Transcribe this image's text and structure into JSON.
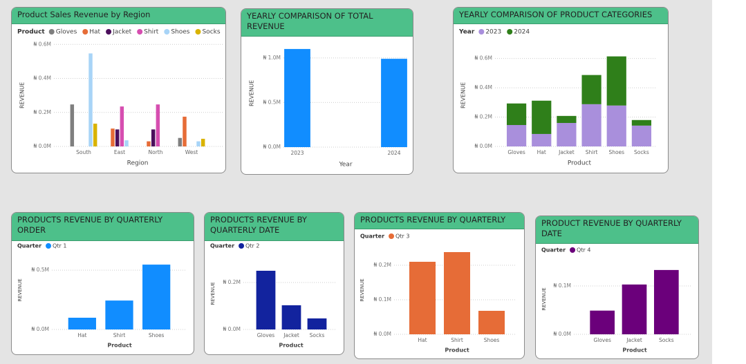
{
  "chart_data": [
    {
      "type": "bar",
      "title": "Product Sales Revenue by Region",
      "x_label": "Region",
      "y_label": "REVENUE",
      "legend_title": "Product",
      "categories": [
        "South",
        "East",
        "North",
        "West"
      ],
      "series": [
        {
          "name": "Gloves",
          "color": "#7f7f7f",
          "values": [
            247000,
            null,
            null,
            50000
          ]
        },
        {
          "name": "Hat",
          "color": "#e66c37",
          "values": [
            null,
            105000,
            30000,
            175000
          ]
        },
        {
          "name": "Jacket",
          "color": "#4b0f5c",
          "values": [
            null,
            100000,
            100000,
            null
          ]
        },
        {
          "name": "Shirt",
          "color": "#d64eb0",
          "values": [
            null,
            235000,
            247000,
            null
          ]
        },
        {
          "name": "Shoes",
          "color": "#a8d4f7",
          "values": [
            547000,
            36000,
            null,
            30000
          ]
        },
        {
          "name": "Socks",
          "color": "#d9b300",
          "values": [
            134000,
            null,
            null,
            45000
          ]
        }
      ],
      "ylim": [
        0,
        650000
      ],
      "yticks": [
        {
          "value": 0,
          "label": "₦ 0.0M"
        },
        {
          "value": 200000,
          "label": "₦ 0.2M"
        },
        {
          "value": 400000,
          "label": "₦ 0.4M"
        },
        {
          "value": 600000,
          "label": "₦ 0.6M"
        }
      ],
      "grid": true
    },
    {
      "type": "bar",
      "title": "YEARLY COMPARISON OF TOTAL REVENUE",
      "x_label": "Year",
      "y_label": "REVENUE",
      "categories": [
        "2023",
        "2024"
      ],
      "values": [
        1100000,
        990000
      ],
      "color": "#118dff",
      "ylim": [
        0,
        1200000
      ],
      "yticks": [
        {
          "value": 0,
          "label": "₦ 0.0M"
        },
        {
          "value": 500000,
          "label": "₦ 0.5M"
        },
        {
          "value": 1000000,
          "label": "₦ 1.0M"
        }
      ],
      "grid": true
    },
    {
      "type": "bar",
      "stacked": true,
      "title": "YEARLY COMPARISON OF PRODUCT CATEGORIES",
      "x_label": "Product",
      "y_label": "REVENUE",
      "legend_title": "Year",
      "categories": [
        "Gloves",
        "Hat",
        "Jacket",
        "Shirt",
        "Shoes",
        "Socks"
      ],
      "series": [
        {
          "name": "2023",
          "color": "#a98fdc",
          "values": [
            146000,
            85000,
            160000,
            288000,
            279000,
            142000
          ]
        },
        {
          "name": "2024",
          "color": "#2f7f1a",
          "values": [
            147000,
            227000,
            48000,
            199000,
            335000,
            38000
          ]
        }
      ],
      "ylim": [
        0,
        650000
      ],
      "yticks": [
        {
          "value": 0,
          "label": "₦ 0.0M"
        },
        {
          "value": 200000,
          "label": "₦ 0.2M"
        },
        {
          "value": 400000,
          "label": "₦ 0.4M"
        },
        {
          "value": 600000,
          "label": "₦ 0.6M"
        }
      ],
      "grid": true
    },
    {
      "type": "bar",
      "title": "PRODUCTS REVENUE BY QUARTERLY ORDER",
      "x_label": "Product",
      "y_label": "REVENUE",
      "legend_title": "Quarter",
      "categories": [
        "Hat",
        "Shirt",
        "Shoes"
      ],
      "series": [
        {
          "name": "Qtr 1",
          "color": "#118dff",
          "values": [
            99000,
            244000,
            547000
          ]
        }
      ],
      "ylim": [
        0,
        600000
      ],
      "yticks": [
        {
          "value": 0,
          "label": "₦ 0.0M"
        },
        {
          "value": 500000,
          "label": "₦ 0.5M"
        }
      ],
      "grid": true
    },
    {
      "type": "bar",
      "title": "PRODUCTS REVENUE BY QUARTERLY DATE",
      "x_label": "Product",
      "y_label": "REVENUE",
      "legend_title": "Quarter",
      "categories": [
        "Gloves",
        "Jacket",
        "Socks"
      ],
      "series": [
        {
          "name": "Qtr 2",
          "color": "#12239e",
          "values": [
            250000,
            103000,
            47000
          ]
        }
      ],
      "ylim": [
        0,
        300000
      ],
      "yticks": [
        {
          "value": 0,
          "label": "₦ 0.0M"
        },
        {
          "value": 200000,
          "label": "₦ 0.2M"
        }
      ],
      "grid": true
    },
    {
      "type": "bar",
      "title": "PRODUCTS REVENUE BY QUARTERLY",
      "x_label": "Product",
      "y_label": "REVENUE",
      "legend_title": "Quarter",
      "categories": [
        "Hat",
        "Shirt",
        "Shoes"
      ],
      "series": [
        {
          "name": "Qtr 3",
          "color": "#e66c37",
          "values": [
            210000,
            238000,
            68000
          ]
        }
      ],
      "ylim": [
        0,
        250000
      ],
      "yticks": [
        {
          "value": 0,
          "label": "₦ 0.0M"
        },
        {
          "value": 100000,
          "label": "₦ 0.1M"
        },
        {
          "value": 200000,
          "label": "₦ 0.2M"
        }
      ],
      "grid": true
    },
    {
      "type": "bar",
      "title": "PRODUCT REVENUE BY QUARTERLY DATE",
      "x_label": "Product",
      "y_label": "REVENUE",
      "legend_title": "Quarter",
      "categories": [
        "Gloves",
        "Jacket",
        "Socks"
      ],
      "series": [
        {
          "name": "Qtr 4",
          "color": "#6b007b",
          "values": [
            49000,
            103000,
            133000
          ]
        }
      ],
      "ylim": [
        0,
        150000
      ],
      "yticks": [
        {
          "value": 0,
          "label": "₦ 0.0M"
        },
        {
          "value": 100000,
          "label": "₦ 0.1M"
        }
      ],
      "grid": true
    }
  ]
}
